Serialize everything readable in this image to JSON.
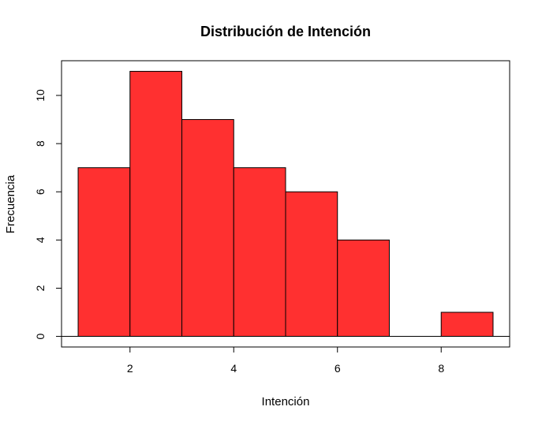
{
  "chart_data": {
    "type": "bar",
    "subtype": "histogram",
    "title": "Distribución de Intención",
    "xlabel": "Intención",
    "ylabel": "Frecuencia",
    "bins": [
      {
        "x0": 1,
        "x1": 2,
        "count": 7
      },
      {
        "x0": 2,
        "x1": 3,
        "count": 11
      },
      {
        "x0": 3,
        "x1": 4,
        "count": 9
      },
      {
        "x0": 4,
        "x1": 5,
        "count": 7
      },
      {
        "x0": 5,
        "x1": 6,
        "count": 6
      },
      {
        "x0": 6,
        "x1": 7,
        "count": 4
      },
      {
        "x0": 7,
        "x1": 8,
        "count": 0
      },
      {
        "x0": 8,
        "x1": 9,
        "count": 1
      }
    ],
    "xlim": [
      0.68,
      9.32
    ],
    "ylim": [
      -0.44,
      11.44
    ],
    "x_ticks": [
      2,
      4,
      6,
      8
    ],
    "y_ticks": [
      0,
      2,
      4,
      6,
      8,
      10
    ],
    "bar_color": "#FF3030",
    "edge_color": "#000000",
    "grid": false,
    "legend": "none"
  }
}
